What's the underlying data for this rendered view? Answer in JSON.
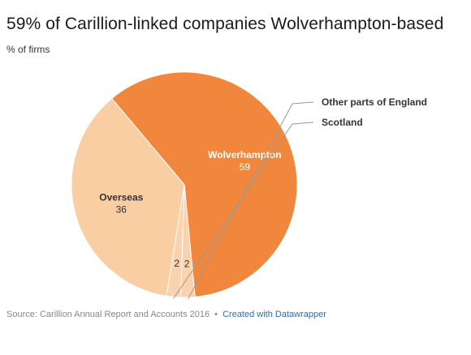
{
  "header": {
    "title": "59% of Carillion-linked companies Wolverhampton-based",
    "subtitle": "% of firms"
  },
  "footer": {
    "source": "Source: Carillion Annual Report and Accounts 2016",
    "separator": "•",
    "credit": "Created with Datawrapper"
  },
  "chart_data": {
    "type": "pie",
    "title": "59% of Carillion-linked companies Wolverhampton-based",
    "subtitle": "% of firms",
    "slices": [
      {
        "label": "Wolverhampton",
        "value": 59,
        "color": "#f0873c"
      },
      {
        "label": "Other parts of England",
        "value": 2,
        "color": "#fad2ad"
      },
      {
        "label": "Scotland",
        "value": 2,
        "color": "#fad2ad"
      },
      {
        "label": "Overseas",
        "value": 36,
        "color": "#f9cea3"
      }
    ],
    "inside_labels": [
      "Wolverhampton",
      "Overseas"
    ],
    "outside_labels": [
      "Other parts of England",
      "Scotland"
    ]
  }
}
